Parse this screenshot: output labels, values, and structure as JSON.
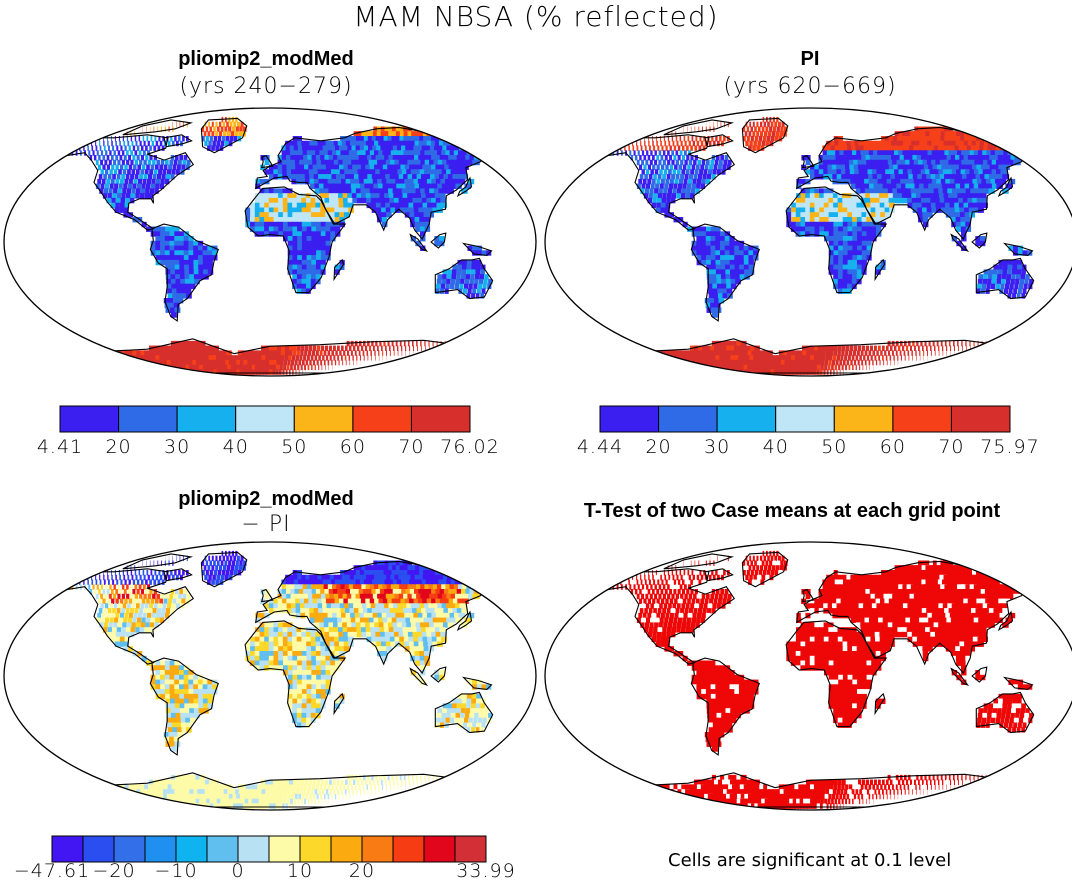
{
  "title": "MAM NBSA (% reflected)",
  "panels": [
    {
      "id": "pliomip",
      "title": "pliomip2_modMed",
      "subtitle": "(yrs 240−279)",
      "colors": [
        "#3a1ff0",
        "#2f6be6",
        "#17b0ee",
        "#bfe6f6",
        "#fbb519",
        "#f6401a",
        "#d7302c"
      ],
      "ticks": [
        "4.41",
        "20",
        "30",
        "40",
        "50",
        "60",
        "70",
        "76.02"
      ]
    },
    {
      "id": "pi",
      "title": "PI",
      "subtitle": "(yrs 620−669)",
      "colors": [
        "#3a1ff0",
        "#2f6be6",
        "#17b0ee",
        "#bfe6f6",
        "#fbb519",
        "#f6401a",
        "#d7302c"
      ],
      "ticks": [
        "4.44",
        "20",
        "30",
        "40",
        "50",
        "60",
        "70",
        "75.97"
      ]
    },
    {
      "id": "diff",
      "title": "pliomip2_modMed",
      "subtitle": "− PI",
      "colors": [
        "#4216f2",
        "#2a4ef0",
        "#336fe8",
        "#1f8ff0",
        "#0fb3f0",
        "#61bfef",
        "#b8e1f3",
        "#fdfba8",
        "#fbd829",
        "#fbaa10",
        "#f97b13",
        "#f53c13",
        "#e1061c",
        "#d22f36"
      ],
      "ticks": [
        "−47.61",
        "",
        "−20",
        "−10",
        "0",
        "10",
        "20",
        "",
        "33.99"
      ],
      "tick_positions": [
        0,
        2,
        4,
        6,
        8,
        10,
        14
      ]
    },
    {
      "id": "ttest",
      "title": "T-Test of two Case means at each grid point",
      "note": "Cells are significant at 0.1 level",
      "colors": [
        "#ee0707"
      ]
    }
  ],
  "colorbar_labels": {
    "pliomip": [
      "4.41",
      "20",
      "30",
      "40",
      "50",
      "60",
      "70",
      "76.02"
    ],
    "pi": [
      "4.44",
      "20",
      "30",
      "40",
      "50",
      "60",
      "70",
      "75.97"
    ],
    "diff": [
      "−47.61",
      "−20",
      "−10",
      "0",
      "10",
      "20",
      "33.99"
    ]
  }
}
